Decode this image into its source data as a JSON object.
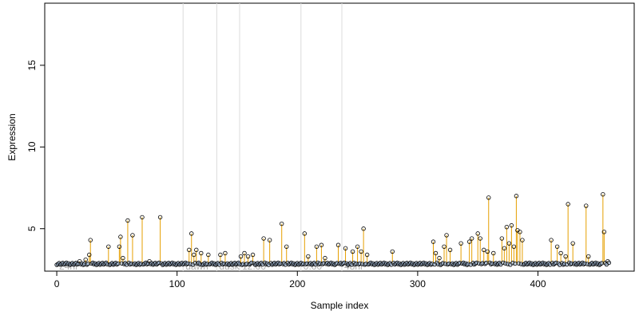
{
  "chart_data": {
    "type": "scatter",
    "title": "",
    "xlabel": "Sample index",
    "ylabel": "Expression",
    "xlim": [
      -10,
      480
    ],
    "ylim": [
      2.4,
      18.8
    ],
    "x_ticks": [
      0,
      100,
      200,
      300,
      400
    ],
    "y_ticks": [
      5,
      10,
      15
    ],
    "baseline": 2.85,
    "grid": false,
    "legend": "none",
    "colors": {
      "point_stroke": "#000000",
      "stem": "#e69f00",
      "baseline_band": "#a8c4e6",
      "divider": "#dcdcdc",
      "region_text": "#b0b0b0"
    },
    "regions": [
      {
        "label": "24hr",
        "start": 0
      },
      {
        "label": "dawn",
        "start": 105
      },
      {
        "label": "dusk",
        "start": 133
      },
      {
        "label": "12:00",
        "start": 152
      },
      {
        "label": "0:00",
        "start": 203
      },
      {
        "label": "48hr",
        "start": 237
      }
    ],
    "dividers": [
      105,
      133,
      152,
      203,
      237
    ],
    "x_count": 460,
    "peaks": [
      {
        "x": 19,
        "y": 3.0
      },
      {
        "x": 24,
        "y": 3.1
      },
      {
        "x": 27,
        "y": 3.4
      },
      {
        "x": 28,
        "y": 4.3
      },
      {
        "x": 43,
        "y": 3.9
      },
      {
        "x": 52,
        "y": 3.9
      },
      {
        "x": 53,
        "y": 4.5
      },
      {
        "x": 55,
        "y": 3.2
      },
      {
        "x": 59,
        "y": 5.5
      },
      {
        "x": 63,
        "y": 4.6
      },
      {
        "x": 71,
        "y": 5.7
      },
      {
        "x": 77,
        "y": 3.0
      },
      {
        "x": 86,
        "y": 5.7
      },
      {
        "x": 110,
        "y": 3.7
      },
      {
        "x": 112,
        "y": 4.7
      },
      {
        "x": 114,
        "y": 3.4
      },
      {
        "x": 116,
        "y": 3.7
      },
      {
        "x": 120,
        "y": 3.5
      },
      {
        "x": 126,
        "y": 3.4
      },
      {
        "x": 136,
        "y": 3.4
      },
      {
        "x": 140,
        "y": 3.5
      },
      {
        "x": 153,
        "y": 3.3
      },
      {
        "x": 156,
        "y": 3.5
      },
      {
        "x": 159,
        "y": 3.3
      },
      {
        "x": 163,
        "y": 3.4
      },
      {
        "x": 172,
        "y": 4.4
      },
      {
        "x": 177,
        "y": 4.3
      },
      {
        "x": 187,
        "y": 5.3
      },
      {
        "x": 191,
        "y": 3.9
      },
      {
        "x": 206,
        "y": 4.7
      },
      {
        "x": 209,
        "y": 3.3
      },
      {
        "x": 216,
        "y": 3.9
      },
      {
        "x": 220,
        "y": 4.0
      },
      {
        "x": 223,
        "y": 3.2
      },
      {
        "x": 234,
        "y": 4.0
      },
      {
        "x": 240,
        "y": 3.8
      },
      {
        "x": 246,
        "y": 3.6
      },
      {
        "x": 250,
        "y": 3.9
      },
      {
        "x": 253,
        "y": 3.6
      },
      {
        "x": 255,
        "y": 5.0
      },
      {
        "x": 258,
        "y": 3.4
      },
      {
        "x": 279,
        "y": 3.6
      },
      {
        "x": 313,
        "y": 4.2
      },
      {
        "x": 315,
        "y": 3.5
      },
      {
        "x": 318,
        "y": 3.2
      },
      {
        "x": 322,
        "y": 3.9
      },
      {
        "x": 324,
        "y": 4.6
      },
      {
        "x": 327,
        "y": 3.7
      },
      {
        "x": 336,
        "y": 4.1
      },
      {
        "x": 343,
        "y": 4.2
      },
      {
        "x": 345,
        "y": 4.4
      },
      {
        "x": 350,
        "y": 4.7
      },
      {
        "x": 352,
        "y": 4.4
      },
      {
        "x": 355,
        "y": 3.7
      },
      {
        "x": 358,
        "y": 3.6
      },
      {
        "x": 359,
        "y": 6.9
      },
      {
        "x": 363,
        "y": 3.5
      },
      {
        "x": 370,
        "y": 4.4
      },
      {
        "x": 372,
        "y": 3.8
      },
      {
        "x": 374,
        "y": 5.1
      },
      {
        "x": 376,
        "y": 4.1
      },
      {
        "x": 378,
        "y": 5.2
      },
      {
        "x": 380,
        "y": 3.9
      },
      {
        "x": 382,
        "y": 7.0
      },
      {
        "x": 383,
        "y": 4.9
      },
      {
        "x": 385,
        "y": 4.8
      },
      {
        "x": 387,
        "y": 4.3
      },
      {
        "x": 411,
        "y": 4.3
      },
      {
        "x": 416,
        "y": 3.9
      },
      {
        "x": 419,
        "y": 3.5
      },
      {
        "x": 423,
        "y": 3.3
      },
      {
        "x": 425,
        "y": 6.5
      },
      {
        "x": 429,
        "y": 4.1
      },
      {
        "x": 440,
        "y": 6.4
      },
      {
        "x": 442,
        "y": 3.3
      },
      {
        "x": 454,
        "y": 7.1
      },
      {
        "x": 455,
        "y": 4.8
      },
      {
        "x": 458,
        "y": 3.0
      }
    ]
  }
}
